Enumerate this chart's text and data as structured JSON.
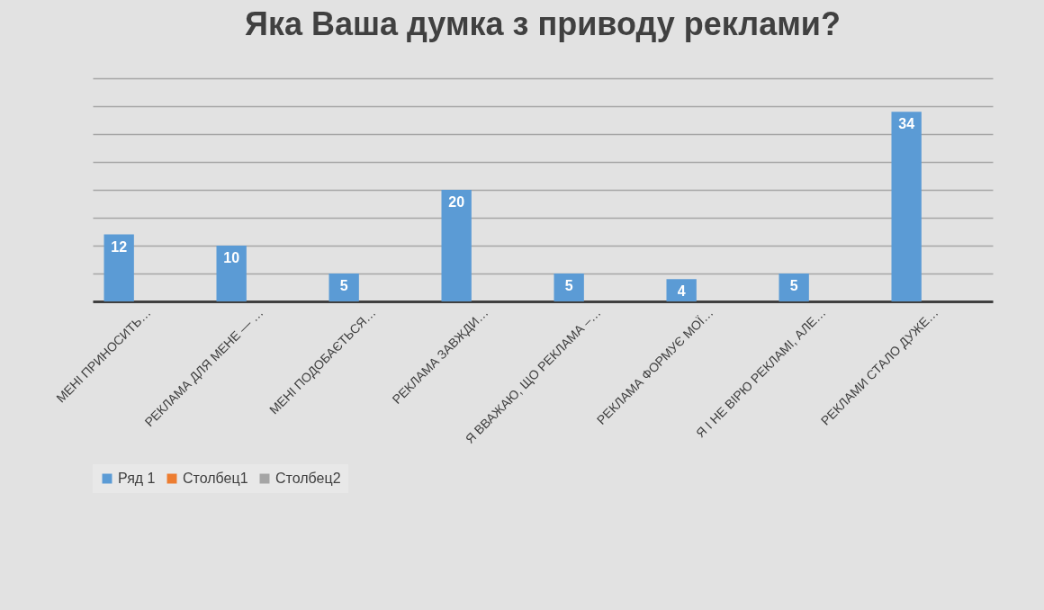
{
  "chart_data": {
    "type": "bar",
    "title": "Яка Ваша думка з приводу реклами?",
    "categories": [
      "МЕНІ ПРИНОСИТЬ…",
      "РЕКЛАМА ДЛЯ МЕНЕ — …",
      "МЕНІ ПОДОБАЄТЬСЯ…",
      "РЕКЛАМА ЗАВЖДИ…",
      "Я ВВАЖАЮ, ЩО РЕКЛАМА –…",
      "РЕКЛАМА ФОРМУЄ МОЇ…",
      "Я І НЕ ВІРЮ РЕКЛАМІ, АЛЕ…",
      "РЕКЛАМИ СТАЛО ДУЖЕ…"
    ],
    "series": [
      {
        "name": "Ряд 1",
        "color": "#5b9bd5",
        "values": [
          12,
          10,
          5,
          20,
          5,
          4,
          5,
          34
        ]
      },
      {
        "name": "Столбец1",
        "color": "#ed7d31",
        "values": [
          null,
          null,
          null,
          null,
          null,
          null,
          null,
          null
        ]
      },
      {
        "name": "Столбец2",
        "color": "#a5a5a5",
        "values": [
          null,
          null,
          null,
          null,
          null,
          null,
          null,
          null
        ]
      }
    ],
    "ylim": [
      0,
      40
    ],
    "yticks": [
      {
        "value": 0,
        "label": null
      },
      {
        "value": 5,
        "label": null
      },
      {
        "value": 10,
        "label": null
      },
      {
        "value": 15,
        "label": null
      },
      {
        "value": 20,
        "label": null
      },
      {
        "value": 25,
        "label": null
      },
      {
        "value": 30,
        "label": null
      },
      {
        "value": 35,
        "label": null
      },
      {
        "value": 40,
        "label": null
      }
    ],
    "tick_labels": "x",
    "grid": "y",
    "legend": "bottom",
    "data_labels": true
  }
}
